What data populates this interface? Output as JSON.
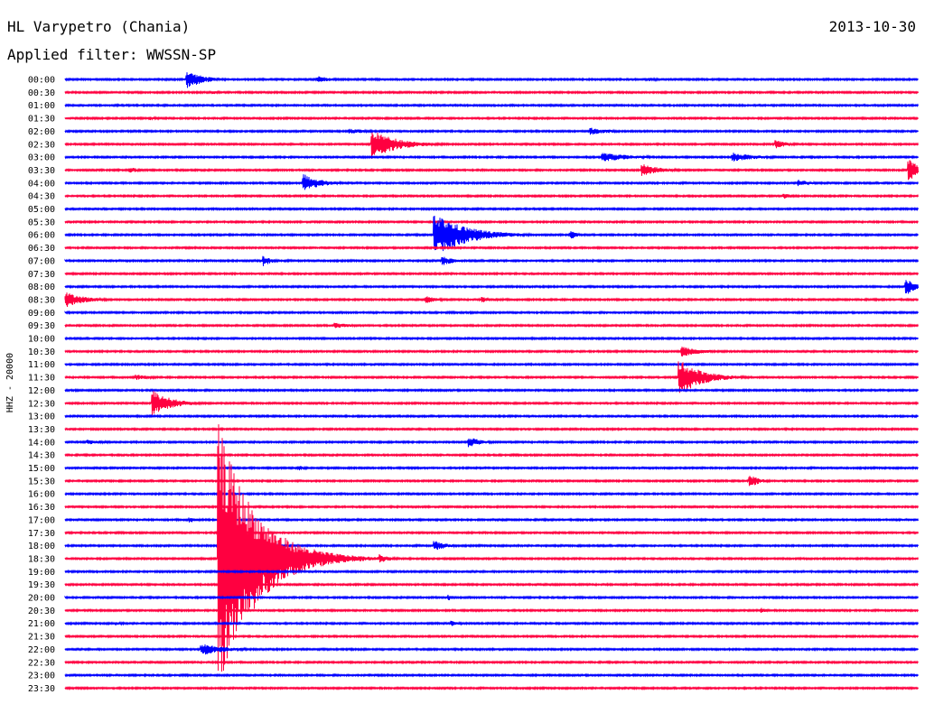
{
  "header": {
    "station": "HL Varypetro (Chania)",
    "date": "2013-10-30",
    "filter": "Applied filter: WWSSN-SP"
  },
  "chart_data": {
    "type": "line",
    "ylabel": "HHZ - 20000",
    "row_labels": [
      "00:00",
      "00:30",
      "01:00",
      "01:30",
      "02:00",
      "02:30",
      "03:00",
      "03:30",
      "04:00",
      "04:30",
      "05:00",
      "05:30",
      "06:00",
      "06:30",
      "07:00",
      "07:30",
      "08:00",
      "08:30",
      "09:00",
      "09:30",
      "10:00",
      "10:30",
      "11:00",
      "11:30",
      "12:00",
      "12:30",
      "13:00",
      "13:30",
      "14:00",
      "14:30",
      "15:00",
      "15:30",
      "16:00",
      "16:30",
      "17:00",
      "17:30",
      "18:00",
      "18:30",
      "19:00",
      "19:30",
      "20:00",
      "20:30",
      "21:00",
      "21:30",
      "22:00",
      "22:30",
      "23:00",
      "23:30"
    ],
    "row_colors": [
      "#0000ff",
      "#ff0040"
    ],
    "row_minutes": 30,
    "events": [
      {
        "row": 0,
        "minute": 4.3,
        "amp": 10,
        "dur": 1.3
      },
      {
        "row": 0,
        "minute": 8.9,
        "amp": 4,
        "dur": 1.0
      },
      {
        "row": 0,
        "minute": 20.5,
        "amp": 2,
        "dur": 1.0
      },
      {
        "row": 1,
        "minute": 5.2,
        "amp": 2,
        "dur": 0.8
      },
      {
        "row": 3,
        "minute": 3.0,
        "amp": 2,
        "dur": 1.0
      },
      {
        "row": 4,
        "minute": 10.0,
        "amp": 3,
        "dur": 1.5
      },
      {
        "row": 4,
        "minute": 18.5,
        "amp": 4,
        "dur": 1.5
      },
      {
        "row": 5,
        "minute": 10.8,
        "amp": 16,
        "dur": 2.0
      },
      {
        "row": 5,
        "minute": 25.0,
        "amp": 5,
        "dur": 1.0
      },
      {
        "row": 6,
        "minute": 18.9,
        "amp": 5,
        "dur": 2.5
      },
      {
        "row": 6,
        "minute": 23.5,
        "amp": 5,
        "dur": 2.0
      },
      {
        "row": 7,
        "minute": 2.3,
        "amp": 3,
        "dur": 1.0
      },
      {
        "row": 7,
        "minute": 20.3,
        "amp": 7,
        "dur": 1.5
      },
      {
        "row": 7,
        "minute": 29.7,
        "amp": 14,
        "dur": 0.8
      },
      {
        "row": 8,
        "minute": 8.4,
        "amp": 10,
        "dur": 1.3
      },
      {
        "row": 8,
        "minute": 25.8,
        "amp": 4,
        "dur": 1.0
      },
      {
        "row": 9,
        "minute": 25.3,
        "amp": 3,
        "dur": 0.8
      },
      {
        "row": 12,
        "minute": 13.0,
        "amp": 24,
        "dur": 2.5
      },
      {
        "row": 12,
        "minute": 17.8,
        "amp": 5,
        "dur": 0.5
      },
      {
        "row": 14,
        "minute": 7.0,
        "amp": 6,
        "dur": 0.6
      },
      {
        "row": 14,
        "minute": 13.3,
        "amp": 5,
        "dur": 1.0
      },
      {
        "row": 16,
        "minute": 29.6,
        "amp": 10,
        "dur": 0.8
      },
      {
        "row": 17,
        "minute": 0.0,
        "amp": 9,
        "dur": 1.5
      },
      {
        "row": 17,
        "minute": 12.7,
        "amp": 4,
        "dur": 1.0
      },
      {
        "row": 17,
        "minute": 14.7,
        "amp": 3,
        "dur": 1.5
      },
      {
        "row": 19,
        "minute": 9.5,
        "amp": 3,
        "dur": 1.5
      },
      {
        "row": 21,
        "minute": 21.7,
        "amp": 6,
        "dur": 1.5
      },
      {
        "row": 23,
        "minute": 21.6,
        "amp": 20,
        "dur": 1.8
      },
      {
        "row": 23,
        "minute": 2.5,
        "amp": 3,
        "dur": 1.5
      },
      {
        "row": 25,
        "minute": 3.1,
        "amp": 14,
        "dur": 1.5
      },
      {
        "row": 28,
        "minute": 0.8,
        "amp": 3,
        "dur": 1.5
      },
      {
        "row": 28,
        "minute": 14.2,
        "amp": 6,
        "dur": 1.0
      },
      {
        "row": 30,
        "minute": 8.2,
        "amp": 3,
        "dur": 0.7
      },
      {
        "row": 31,
        "minute": 24.1,
        "amp": 7,
        "dur": 0.8
      },
      {
        "row": 34,
        "minute": 4.4,
        "amp": 3,
        "dur": 0.7
      },
      {
        "row": 36,
        "minute": 13.0,
        "amp": 6,
        "dur": 1.0
      },
      {
        "row": 37,
        "minute": 5.4,
        "amp": 150,
        "dur": 2.8
      },
      {
        "row": 37,
        "minute": 7.0,
        "amp": 18,
        "dur": 1.3
      },
      {
        "row": 37,
        "minute": 11.1,
        "amp": 5,
        "dur": 0.8
      },
      {
        "row": 40,
        "minute": 13.5,
        "amp": 3,
        "dur": 0.5
      },
      {
        "row": 41,
        "minute": 24.5,
        "amp": 3,
        "dur": 0.5
      },
      {
        "row": 42,
        "minute": 13.6,
        "amp": 3,
        "dur": 0.8
      },
      {
        "row": 42,
        "minute": 1.8,
        "amp": 2,
        "dur": 0.8
      },
      {
        "row": 44,
        "minute": 4.8,
        "amp": 7,
        "dur": 1.8
      }
    ]
  }
}
